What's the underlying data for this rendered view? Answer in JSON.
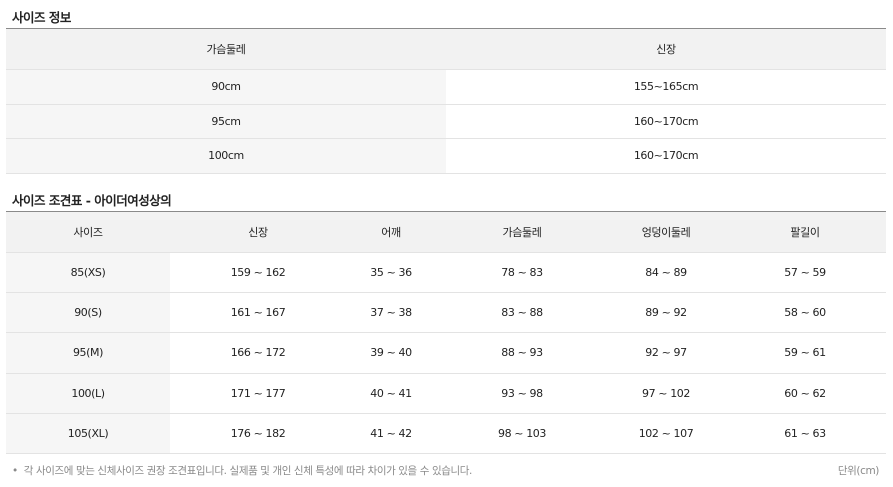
{
  "size_info": {
    "title": "사이즈 정보",
    "headers": [
      "가슴둘레",
      "신장"
    ],
    "rows": [
      [
        "90cm",
        "155~165cm"
      ],
      [
        "95cm",
        "160~170cm"
      ],
      [
        "100cm",
        "160~170cm"
      ]
    ]
  },
  "size_chart": {
    "title": "사이즈 조견표 - 아이더여성상의",
    "headers": [
      "사이즈",
      "신장",
      "어깨",
      "가슴둘레",
      "엉덩이둘레",
      "팔길이"
    ],
    "rows": [
      [
        "85(XS)",
        "159 ~ 162",
        "35 ~ 36",
        "78 ~ 83",
        "84 ~ 89",
        "57 ~ 59"
      ],
      [
        "90(S)",
        "161 ~ 167",
        "37 ~ 38",
        "83 ~ 88",
        "89 ~ 92",
        "58 ~ 60"
      ],
      [
        "95(M)",
        "166 ~ 172",
        "39 ~ 40",
        "88 ~ 93",
        "92 ~ 97",
        "59 ~ 61"
      ],
      [
        "100(L)",
        "171 ~ 177",
        "40 ~ 41",
        "93 ~ 98",
        "97 ~ 102",
        "60 ~ 62"
      ],
      [
        "105(XL)",
        "176 ~ 182",
        "41 ~ 42",
        "98 ~ 103",
        "102 ~ 107",
        "61 ~ 63"
      ]
    ]
  },
  "footer": {
    "bullet": "•",
    "note": "각 사이즈에 맞는 신체사이즈 권장 조견표입니다. 실제품 및 개인 신체 특성에 따라 차이가 있을 수 있습니다.",
    "unit": "단위(cm)"
  }
}
